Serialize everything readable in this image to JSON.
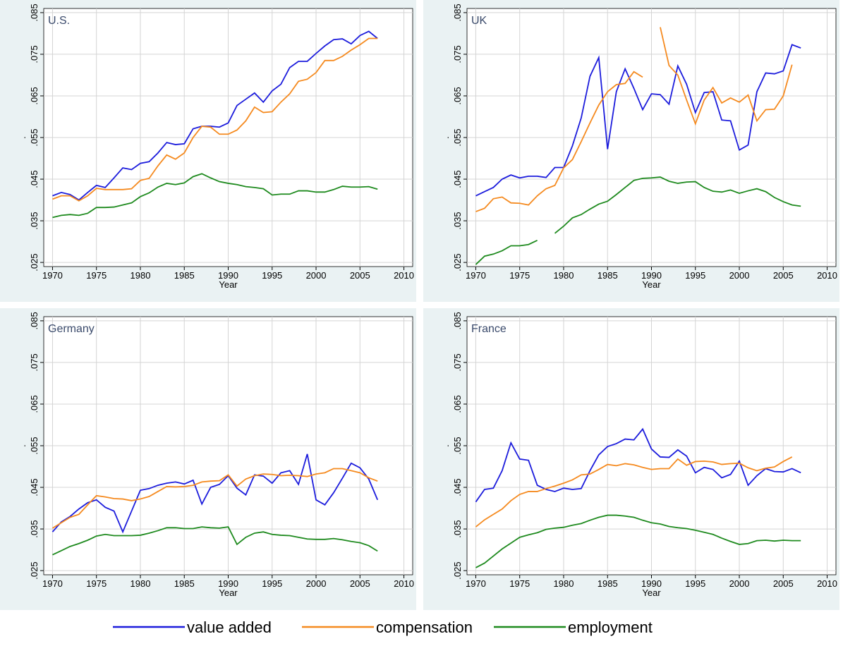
{
  "chart_data": [
    {
      "type": "line",
      "title": "U.S.",
      "xlabel": "Year",
      "ylabel": ".",
      "x": [
        1970,
        1971,
        1972,
        1973,
        1974,
        1975,
        1976,
        1977,
        1978,
        1979,
        1980,
        1981,
        1982,
        1983,
        1984,
        1985,
        1986,
        1987,
        1988,
        1989,
        1990,
        1991,
        1992,
        1993,
        1994,
        1995,
        1996,
        1997,
        1998,
        1999,
        2000,
        2001,
        2002,
        2003,
        2004,
        2005,
        2006,
        2007
      ],
      "xlim": [
        1969,
        2011
      ],
      "xticks": [
        1970,
        1975,
        1980,
        1985,
        1990,
        1995,
        2000,
        2005,
        2010
      ],
      "ylim": [
        0.024,
        0.086
      ],
      "yticks": [
        {
          "value": 0.025,
          "label": ".025"
        },
        {
          "value": 0.035,
          "label": ".035"
        },
        {
          "value": 0.045,
          "label": ".045"
        },
        {
          "value": 0.055,
          "label": ".055"
        },
        {
          "value": 0.065,
          "label": ".065"
        },
        {
          "value": 0.075,
          "label": ".075"
        },
        {
          "value": 0.085,
          "label": ".085"
        }
      ],
      "grid": true,
      "series": [
        {
          "name": "value added",
          "color": "#1c1cdc",
          "values": [
            0.041,
            0.0418,
            0.0413,
            0.04,
            0.0418,
            0.0435,
            0.043,
            0.0453,
            0.0477,
            0.0473,
            0.0488,
            0.0492,
            0.0513,
            0.0538,
            0.0533,
            0.0535,
            0.0571,
            0.0577,
            0.0577,
            0.0575,
            0.0585,
            0.0627,
            0.0642,
            0.0657,
            0.0635,
            0.0662,
            0.0678,
            0.0718,
            0.0733,
            0.0733,
            0.0752,
            0.077,
            0.0785,
            0.0787,
            0.0775,
            0.0795,
            0.0805,
            0.0788
          ]
        },
        {
          "name": "compensation",
          "color": "#f58a1f",
          "values": [
            0.0402,
            0.041,
            0.041,
            0.0398,
            0.041,
            0.0428,
            0.0425,
            0.0425,
            0.0425,
            0.0427,
            0.0447,
            0.0452,
            0.0482,
            0.0508,
            0.0498,
            0.0513,
            0.055,
            0.0577,
            0.0575,
            0.0558,
            0.0558,
            0.0568,
            0.059,
            0.0623,
            0.061,
            0.0612,
            0.0635,
            0.0655,
            0.0685,
            0.069,
            0.0706,
            0.0735,
            0.0735,
            0.0745,
            0.076,
            0.0773,
            0.0788,
            0.0788
          ]
        },
        {
          "name": "employment",
          "color": "#1e8a1e",
          "values": [
            0.0358,
            0.0363,
            0.0365,
            0.0363,
            0.0368,
            0.0382,
            0.0382,
            0.0383,
            0.0388,
            0.0393,
            0.0408,
            0.0417,
            0.0431,
            0.044,
            0.0437,
            0.0441,
            0.0456,
            0.0463,
            0.0453,
            0.0444,
            0.044,
            0.0437,
            0.0432,
            0.043,
            0.0427,
            0.0412,
            0.0414,
            0.0414,
            0.0422,
            0.0422,
            0.0419,
            0.0419,
            0.0425,
            0.0433,
            0.0431,
            0.0431,
            0.0432,
            0.0426
          ]
        }
      ]
    },
    {
      "type": "line",
      "title": "UK",
      "xlabel": "Year",
      "ylabel": ".",
      "x": [
        1970,
        1971,
        1972,
        1973,
        1974,
        1975,
        1976,
        1977,
        1978,
        1979,
        1980,
        1981,
        1982,
        1983,
        1984,
        1985,
        1986,
        1987,
        1988,
        1989,
        1990,
        1991,
        1992,
        1993,
        1994,
        1995,
        1996,
        1997,
        1998,
        1999,
        2000,
        2001,
        2002,
        2003,
        2004,
        2005,
        2006,
        2007
      ],
      "xlim": [
        1969,
        2011
      ],
      "xticks": [
        1970,
        1975,
        1980,
        1985,
        1990,
        1995,
        2000,
        2005,
        2010
      ],
      "ylim": [
        0.024,
        0.086
      ],
      "yticks": [
        {
          "value": 0.025,
          "label": ".025"
        },
        {
          "value": 0.035,
          "label": ".035"
        },
        {
          "value": 0.045,
          "label": ".045"
        },
        {
          "value": 0.055,
          "label": ".055"
        },
        {
          "value": 0.065,
          "label": ".065"
        },
        {
          "value": 0.075,
          "label": ".075"
        },
        {
          "value": 0.085,
          "label": ".085"
        }
      ],
      "grid": true,
      "series": [
        {
          "name": "value added",
          "color": "#1c1cdc",
          "values": [
            0.041,
            0.042,
            0.043,
            0.045,
            0.046,
            0.0453,
            0.0457,
            0.0457,
            0.0454,
            0.0478,
            0.0478,
            0.053,
            0.0597,
            0.0697,
            0.0742,
            0.0522,
            0.066,
            0.0715,
            0.0668,
            0.0617,
            0.0655,
            0.0653,
            0.063,
            0.0722,
            0.0678,
            0.061,
            0.0658,
            0.066,
            0.0592,
            0.059,
            0.052,
            0.0532,
            0.066,
            0.0705,
            0.0703,
            0.071,
            0.0773,
            0.0765
          ]
        },
        {
          "name": "compensation",
          "color": "#f58a1f",
          "values": [
            0.0372,
            0.038,
            0.0403,
            0.0407,
            0.0393,
            0.0392,
            0.0388,
            0.041,
            0.0427,
            0.0435,
            0.0477,
            0.0497,
            0.054,
            0.0585,
            0.0628,
            0.066,
            0.0677,
            0.068,
            0.0708,
            0.0695,
            null,
            0.0815,
            0.0723,
            0.07,
            0.064,
            0.0583,
            0.064,
            0.067,
            0.0633,
            0.0645,
            0.0635,
            0.0652,
            0.059,
            0.0617,
            0.0618,
            0.065,
            0.0725,
            null
          ]
        },
        {
          "name": "employment",
          "color": "#1e8a1e",
          "values": [
            0.0245,
            0.0265,
            0.027,
            0.0278,
            0.029,
            0.029,
            0.0293,
            0.0303,
            null,
            0.032,
            0.0337,
            0.0357,
            0.0365,
            0.0378,
            0.039,
            0.0397,
            0.0413,
            0.043,
            0.0447,
            0.0452,
            0.0453,
            0.0455,
            0.0445,
            0.044,
            0.0443,
            0.0444,
            0.043,
            0.0421,
            0.0419,
            0.0424,
            0.0416,
            0.0422,
            0.0427,
            0.042,
            0.0406,
            0.0396,
            0.0388,
            0.0385
          ]
        }
      ]
    },
    {
      "type": "line",
      "title": "Germany",
      "xlabel": "Year",
      "ylabel": ".",
      "x": [
        1970,
        1971,
        1972,
        1973,
        1974,
        1975,
        1976,
        1977,
        1978,
        1979,
        1980,
        1981,
        1982,
        1983,
        1984,
        1985,
        1986,
        1987,
        1988,
        1989,
        1990,
        1991,
        1992,
        1993,
        1994,
        1995,
        1996,
        1997,
        1998,
        1999,
        2000,
        2001,
        2002,
        2003,
        2004,
        2005,
        2006,
        2007
      ],
      "xlim": [
        1969,
        2011
      ],
      "xticks": [
        1970,
        1975,
        1980,
        1985,
        1990,
        1995,
        2000,
        2005,
        2010
      ],
      "ylim": [
        0.024,
        0.086
      ],
      "yticks": [
        {
          "value": 0.025,
          "label": ".025"
        },
        {
          "value": 0.035,
          "label": ".035"
        },
        {
          "value": 0.045,
          "label": ".045"
        },
        {
          "value": 0.055,
          "label": ".055"
        },
        {
          "value": 0.065,
          "label": ".065"
        },
        {
          "value": 0.075,
          "label": ".075"
        },
        {
          "value": 0.085,
          "label": ".085"
        }
      ],
      "grid": true,
      "series": [
        {
          "name": "value added",
          "color": "#1c1cdc",
          "values": [
            0.0343,
            0.0367,
            0.038,
            0.0398,
            0.0413,
            0.042,
            0.0402,
            0.0393,
            0.0343,
            0.0393,
            0.0443,
            0.0447,
            0.0455,
            0.046,
            0.0463,
            0.0458,
            0.0467,
            0.041,
            0.045,
            0.0457,
            0.0478,
            0.0448,
            0.0432,
            0.048,
            0.0477,
            0.046,
            0.0485,
            0.049,
            0.0457,
            0.053,
            0.042,
            0.0408,
            0.0437,
            0.0472,
            0.0508,
            0.0497,
            0.047,
            0.042
          ]
        },
        {
          "name": "compensation",
          "color": "#f58a1f",
          "values": [
            0.0352,
            0.0365,
            0.0378,
            0.0385,
            0.0408,
            0.043,
            0.0427,
            0.0423,
            0.0422,
            0.0418,
            0.0422,
            0.0428,
            0.044,
            0.0452,
            0.0451,
            0.0452,
            0.0455,
            0.0463,
            0.0465,
            0.0466,
            0.048,
            0.0453,
            0.047,
            0.0478,
            0.0482,
            0.0481,
            0.0478,
            0.0479,
            0.0478,
            0.0476,
            0.0482,
            0.0485,
            0.0495,
            0.0495,
            0.049,
            0.0485,
            0.0473,
            0.0465
          ]
        },
        {
          "name": "employment",
          "color": "#1e8a1e",
          "values": [
            0.0288,
            0.0298,
            0.0308,
            0.0315,
            0.0323,
            0.0333,
            0.0337,
            0.0334,
            0.0334,
            0.0334,
            0.0335,
            0.034,
            0.0346,
            0.0353,
            0.0353,
            0.0351,
            0.0351,
            0.0355,
            0.0353,
            0.0352,
            0.0355,
            0.0313,
            0.033,
            0.034,
            0.0343,
            0.0337,
            0.0335,
            0.0334,
            0.033,
            0.0326,
            0.0325,
            0.0325,
            0.0327,
            0.0324,
            0.032,
            0.0317,
            0.031,
            0.0297
          ]
        }
      ]
    },
    {
      "type": "line",
      "title": "France",
      "xlabel": "Year",
      "ylabel": ".",
      "x": [
        1970,
        1971,
        1972,
        1973,
        1974,
        1975,
        1976,
        1977,
        1978,
        1979,
        1980,
        1981,
        1982,
        1983,
        1984,
        1985,
        1986,
        1987,
        1988,
        1989,
        1990,
        1991,
        1992,
        1993,
        1994,
        1995,
        1996,
        1997,
        1998,
        1999,
        2000,
        2001,
        2002,
        2003,
        2004,
        2005,
        2006,
        2007
      ],
      "xlim": [
        1969,
        2011
      ],
      "xticks": [
        1970,
        1975,
        1980,
        1985,
        1990,
        1995,
        2000,
        2005,
        2010
      ],
      "ylim": [
        0.024,
        0.086
      ],
      "yticks": [
        {
          "value": 0.025,
          "label": ".025"
        },
        {
          "value": 0.035,
          "label": ".035"
        },
        {
          "value": 0.045,
          "label": ".045"
        },
        {
          "value": 0.055,
          "label": ".055"
        },
        {
          "value": 0.065,
          "label": ".065"
        },
        {
          "value": 0.075,
          "label": ".075"
        },
        {
          "value": 0.085,
          "label": ".085"
        }
      ],
      "grid": true,
      "series": [
        {
          "name": "value added",
          "color": "#1c1cdc",
          "values": [
            0.0415,
            0.0445,
            0.0448,
            0.049,
            0.0557,
            0.0518,
            0.0515,
            0.0455,
            0.0445,
            0.044,
            0.0448,
            0.0445,
            0.0447,
            0.049,
            0.0528,
            0.0548,
            0.0555,
            0.0566,
            0.0564,
            0.059,
            0.0542,
            0.0523,
            0.0522,
            0.054,
            0.0525,
            0.0485,
            0.0498,
            0.0493,
            0.0473,
            0.0481,
            0.0513,
            0.0455,
            0.0478,
            0.0495,
            0.0488,
            0.0487,
            0.0495,
            0.0485
          ]
        },
        {
          "name": "compensation",
          "color": "#f58a1f",
          "values": [
            0.0355,
            0.0372,
            0.0385,
            0.0398,
            0.0418,
            0.0433,
            0.044,
            0.044,
            0.0447,
            0.0453,
            0.046,
            0.0468,
            0.048,
            0.0482,
            0.0493,
            0.0505,
            0.0502,
            0.0507,
            0.0504,
            0.0498,
            0.0493,
            0.0495,
            0.0495,
            0.0518,
            0.0503,
            0.0512,
            0.0513,
            0.0511,
            0.0505,
            0.0507,
            0.0508,
            0.0497,
            0.049,
            0.0496,
            0.0499,
            0.0512,
            0.0523,
            null
          ]
        },
        {
          "name": "employment",
          "color": "#1e8a1e",
          "values": [
            0.0257,
            0.0268,
            0.0285,
            0.0302,
            0.0316,
            0.033,
            0.0336,
            0.0341,
            0.0349,
            0.0352,
            0.0354,
            0.0359,
            0.0363,
            0.0371,
            0.0378,
            0.0383,
            0.0383,
            0.0381,
            0.0378,
            0.0371,
            0.0365,
            0.0362,
            0.0356,
            0.0353,
            0.0351,
            0.0347,
            0.0342,
            0.0337,
            0.0328,
            0.032,
            0.0313,
            0.0315,
            0.0322,
            0.0323,
            0.0321,
            0.0323,
            0.0322,
            0.0322
          ]
        }
      ]
    }
  ]
}
